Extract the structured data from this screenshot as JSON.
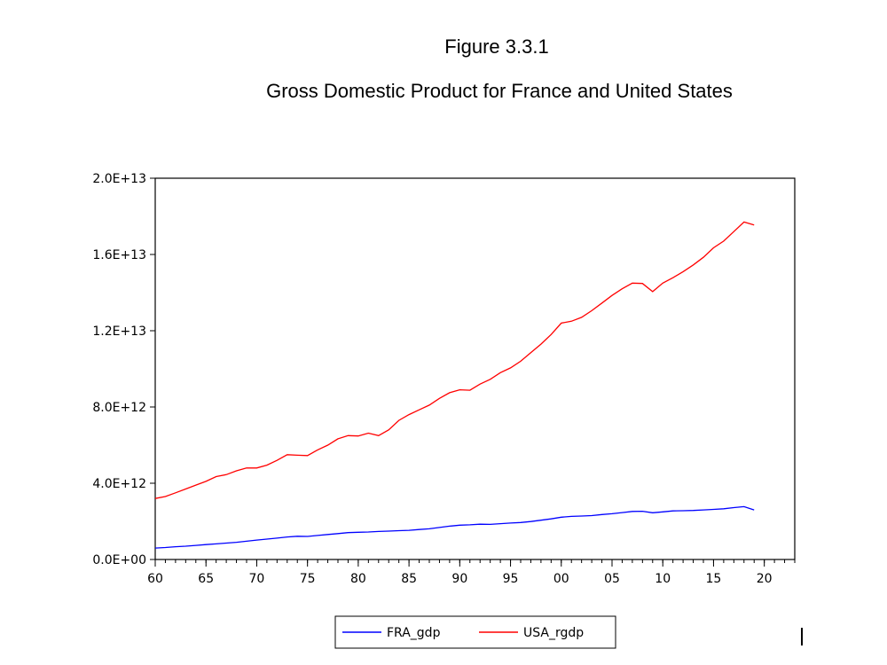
{
  "figure_label": "Figure 3.3.1",
  "chart_data": {
    "type": "line",
    "title": "Gross Domestic Product for France and United States",
    "xlabel": "",
    "ylabel": "",
    "xlim": [
      1960,
      2023
    ],
    "ylim": [
      0,
      20000000000000.0
    ],
    "y_ticks": [
      {
        "value": 0,
        "label": "0.0E+00"
      },
      {
        "value": 4000000000000.0,
        "label": "4.0E+12"
      },
      {
        "value": 8000000000000.0,
        "label": "8.0E+12"
      },
      {
        "value": 12000000000000.0,
        "label": "1.2E+13"
      },
      {
        "value": 16000000000000.0,
        "label": "1.6E+13"
      },
      {
        "value": 20000000000000.0,
        "label": "2.0E+13"
      }
    ],
    "x_ticks": [
      {
        "value": 1960,
        "label": "60"
      },
      {
        "value": 1965,
        "label": "65"
      },
      {
        "value": 1970,
        "label": "70"
      },
      {
        "value": 1975,
        "label": "75"
      },
      {
        "value": 1980,
        "label": "80"
      },
      {
        "value": 1985,
        "label": "85"
      },
      {
        "value": 1990,
        "label": "90"
      },
      {
        "value": 1995,
        "label": "95"
      },
      {
        "value": 2000,
        "label": "00"
      },
      {
        "value": 2005,
        "label": "05"
      },
      {
        "value": 2010,
        "label": "10"
      },
      {
        "value": 2015,
        "label": "15"
      },
      {
        "value": 2020,
        "label": "20"
      }
    ],
    "grid": false,
    "legend_position": "bottom-center",
    "x": [
      1960,
      1961,
      1962,
      1963,
      1964,
      1965,
      1966,
      1967,
      1968,
      1969,
      1970,
      1971,
      1972,
      1973,
      1974,
      1975,
      1976,
      1977,
      1978,
      1979,
      1980,
      1981,
      1982,
      1983,
      1984,
      1985,
      1986,
      1987,
      1988,
      1989,
      1990,
      1991,
      1992,
      1993,
      1994,
      1995,
      1996,
      1997,
      1998,
      1999,
      2000,
      2001,
      2002,
      2003,
      2004,
      2005,
      2006,
      2007,
      2008,
      2009,
      2010,
      2011,
      2012,
      2013,
      2014,
      2015,
      2016,
      2017,
      2018,
      2019
    ],
    "series": [
      {
        "name": "FRA_gdp",
        "color": "#0000ff",
        "values": [
          600000000000.0,
          630000000000.0,
          670000000000.0,
          700000000000.0,
          740000000000.0,
          780000000000.0,
          820000000000.0,
          860000000000.0,
          900000000000.0,
          960000000000.0,
          1020000000000.0,
          1070000000000.0,
          1120000000000.0,
          1180000000000.0,
          1220000000000.0,
          1210000000000.0,
          1260000000000.0,
          1310000000000.0,
          1360000000000.0,
          1410000000000.0,
          1430000000000.0,
          1440000000000.0,
          1470000000000.0,
          1490000000000.0,
          1510000000000.0,
          1530000000000.0,
          1570000000000.0,
          1610000000000.0,
          1680000000000.0,
          1750000000000.0,
          1800000000000.0,
          1820000000000.0,
          1850000000000.0,
          1840000000000.0,
          1880000000000.0,
          1910000000000.0,
          1940000000000.0,
          1990000000000.0,
          2060000000000.0,
          2130000000000.0,
          2220000000000.0,
          2260000000000.0,
          2280000000000.0,
          2300000000000.0,
          2360000000000.0,
          2400000000000.0,
          2460000000000.0,
          2520000000000.0,
          2530000000000.0,
          2450000000000.0,
          2500000000000.0,
          2550000000000.0,
          2560000000000.0,
          2570000000000.0,
          2600000000000.0,
          2630000000000.0,
          2660000000000.0,
          2720000000000.0,
          2770000000000.0,
          2600000000000.0
        ]
      },
      {
        "name": "USA_rgdp",
        "color": "#ff0000",
        "values": [
          3200000000000.0,
          3300000000000.0,
          3500000000000.0,
          3700000000000.0,
          3900000000000.0,
          4100000000000.0,
          4350000000000.0,
          4450000000000.0,
          4650000000000.0,
          4800000000000.0,
          4800000000000.0,
          4950000000000.0,
          5200000000000.0,
          5500000000000.0,
          5470000000000.0,
          5450000000000.0,
          5750000000000.0,
          6000000000000.0,
          6330000000000.0,
          6500000000000.0,
          6480000000000.0,
          6630000000000.0,
          6500000000000.0,
          6800000000000.0,
          7300000000000.0,
          7600000000000.0,
          7850000000000.0,
          8100000000000.0,
          8450000000000.0,
          8750000000000.0,
          8900000000000.0,
          8880000000000.0,
          9200000000000.0,
          9450000000000.0,
          9800000000000.0,
          10050000000000.0,
          10400000000000.0,
          10850000000000.0,
          11300000000000.0,
          11800000000000.0,
          12400000000000.0,
          12500000000000.0,
          12700000000000.0,
          13050000000000.0,
          13450000000000.0,
          13850000000000.0,
          14200000000000.0,
          14500000000000.0,
          14480000000000.0,
          14050000000000.0,
          14500000000000.0,
          14780000000000.0,
          15100000000000.0,
          15450000000000.0,
          15850000000000.0,
          16350000000000.0,
          16700000000000.0,
          17200000000000.0,
          17700000000000.0,
          17550000000000.0
        ]
      }
    ]
  }
}
